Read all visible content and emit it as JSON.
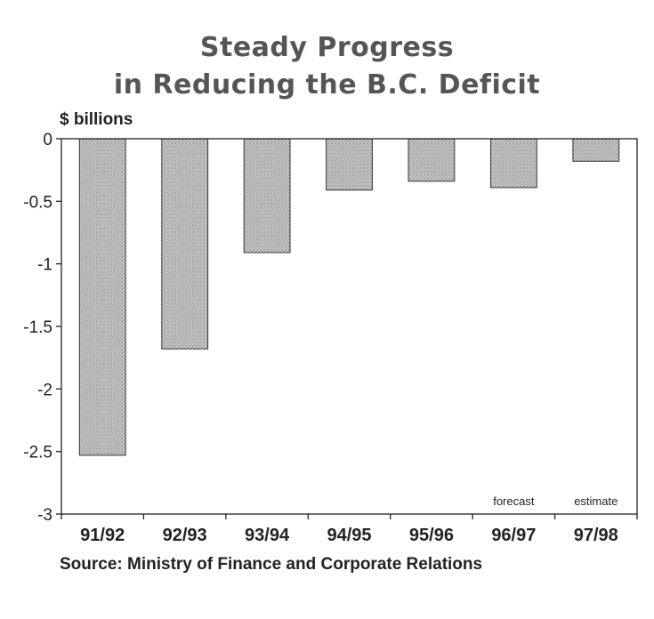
{
  "chart_data": {
    "type": "bar",
    "title_line1": "Steady Progress",
    "title_line2": "in Reducing the B.C. Deficit",
    "ylabel": "$ billions",
    "xlabel": "",
    "source": "Source: Ministry of Finance and Corporate Relations",
    "categories": [
      "91/92",
      "92/93",
      "93/94",
      "94/95",
      "95/96",
      "96/97",
      "97/98"
    ],
    "values": [
      -2.53,
      -1.68,
      -0.91,
      -0.41,
      -0.34,
      -0.39,
      -0.18
    ],
    "ylim": [
      -3,
      0
    ],
    "yticks": [
      0,
      -0.5,
      -1,
      -1.5,
      -2,
      -2.5,
      -3
    ],
    "ytick_labels": [
      "0",
      "-0.5",
      "-1",
      "-1.5",
      "-2",
      "-2.5",
      "-3"
    ],
    "annotations": [
      {
        "category": "96/97",
        "text": "forecast"
      },
      {
        "category": "97/98",
        "text": "estimate"
      }
    ],
    "grid": false,
    "legend": "none",
    "bar_color": "#bdbdbd"
  }
}
